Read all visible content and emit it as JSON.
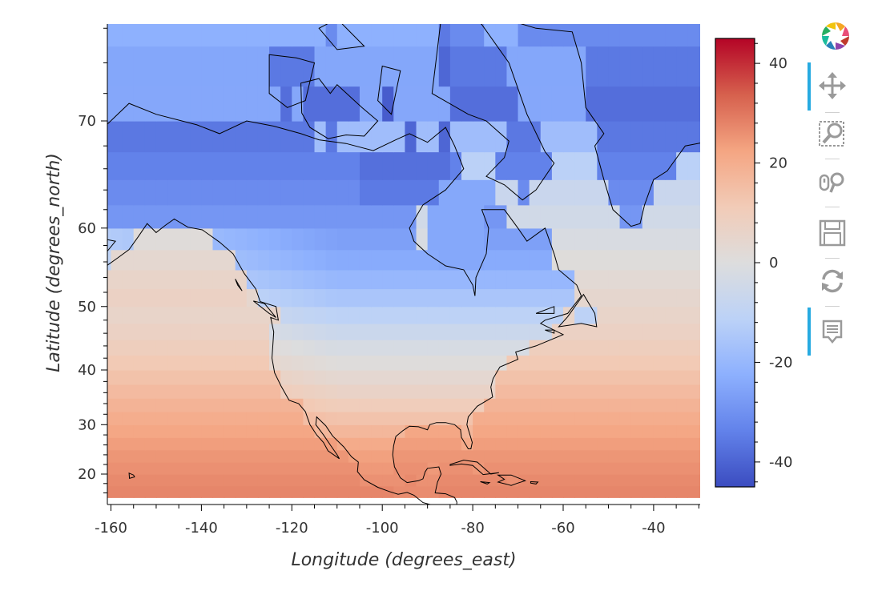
{
  "chart_data": {
    "type": "heatmap",
    "title": "",
    "xlabel": "Longitude (degrees_east)",
    "ylabel": "Latitude (degrees_north)",
    "xlim": [
      -160.5,
      -28
    ],
    "ylim": [
      15,
      80
    ],
    "y_scale": "mercator",
    "x_ticks": [
      -160,
      -140,
      -120,
      -100,
      -80,
      -60,
      -40
    ],
    "x_tick_labels": [
      "-160",
      "-140",
      "-120",
      "-100",
      "-80",
      "-60",
      "-40"
    ],
    "y_ticks": [
      20,
      30,
      40,
      50,
      60,
      70
    ],
    "y_tick_labels": [
      "20",
      "30",
      "40",
      "50",
      "60",
      "70"
    ],
    "colormap": "coolwarm",
    "color_low": "#3b4cc0",
    "color_mid": "#dddddd",
    "color_high": "#b40426",
    "clim": [
      -45,
      45
    ],
    "colorbar_ticks": [
      40,
      20,
      0,
      -20,
      -40
    ],
    "colorbar_tick_labels": [
      "40",
      "20",
      "0",
      "-20",
      "-40"
    ],
    "overlay": "coastlines",
    "grid": false,
    "temperature_field_description": [
      {
        "lat": 17,
        "land_value": 26,
        "ocean_value": 27
      },
      {
        "lat": 25,
        "land_value": 22,
        "ocean_value": 24
      },
      {
        "lat": 35,
        "land_value": 8,
        "ocean_value": 17
      },
      {
        "lat": 45,
        "land_value": -4,
        "ocean_value": 8
      },
      {
        "lat": 55,
        "land_value": -22,
        "ocean_value": 2
      },
      {
        "lat": 65,
        "land_value": -32,
        "ocean_value": -8
      },
      {
        "lat": 72,
        "land_value": -38,
        "ocean_value": -26
      },
      {
        "lat": 78,
        "land_value": -28,
        "ocean_value": -20
      }
    ]
  },
  "toolbar": {
    "tools": [
      {
        "icon": "pan-icon",
        "active": true
      },
      {
        "icon": "box-zoom-icon",
        "active": false
      },
      {
        "icon": "wheel-zoom-icon",
        "active": false
      },
      {
        "icon": "save-icon",
        "active": false
      },
      {
        "icon": "reset-icon",
        "active": false
      },
      {
        "icon": "hover-icon",
        "active": true
      }
    ],
    "accent": "#26aae1"
  }
}
